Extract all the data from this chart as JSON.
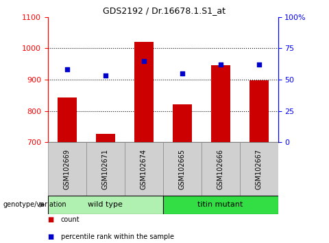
{
  "title": "GDS2192 / Dr.16678.1.S1_at",
  "samples": [
    "GSM102669",
    "GSM102671",
    "GSM102674",
    "GSM102665",
    "GSM102666",
    "GSM102667"
  ],
  "counts": [
    843,
    727,
    1020,
    820,
    947,
    897
  ],
  "percentiles": [
    58,
    53,
    65,
    55,
    62,
    62
  ],
  "groups": [
    "wild type",
    "wild type",
    "wild type",
    "titin mutant",
    "titin mutant",
    "titin mutant"
  ],
  "group_colors": {
    "wild type": "#b0f0b0",
    "titin mutant": "#33dd44"
  },
  "ylim_left": [
    700,
    1100
  ],
  "ylim_right": [
    0,
    100
  ],
  "yticks_left": [
    700,
    800,
    900,
    1000,
    1100
  ],
  "yticks_right": [
    0,
    25,
    50,
    75,
    100
  ],
  "bar_color": "#cc0000",
  "dot_color": "#0000cc",
  "bar_bottom": 700,
  "legend_count_label": "count",
  "legend_percentile_label": "percentile rank within the sample",
  "genotype_label": "genotype/variation"
}
